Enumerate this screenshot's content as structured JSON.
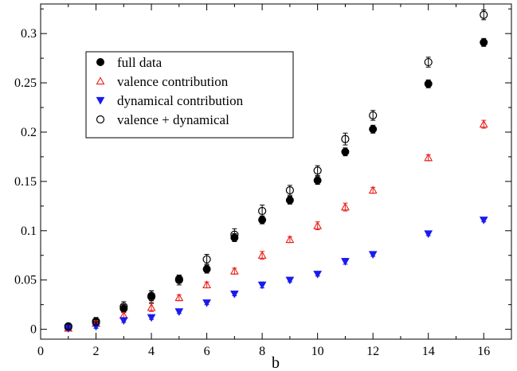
{
  "chart_data": {
    "type": "scatter",
    "title": "",
    "xlabel": "b",
    "ylabel": "",
    "xlim": [
      0,
      17
    ],
    "ylim": [
      -0.01,
      0.33
    ],
    "xticks": [
      0,
      2,
      4,
      6,
      8,
      10,
      12,
      14,
      16
    ],
    "yticks": [
      0,
      0.05,
      0.1,
      0.15,
      0.2,
      0.25,
      0.3
    ],
    "xtick_labels": [
      "0",
      "2",
      "4",
      "6",
      "8",
      "10",
      "12",
      "14",
      "16"
    ],
    "ytick_labels": [
      "0",
      "0.05",
      "0.1",
      "0.15",
      "0.2",
      "0.25",
      "0.3"
    ],
    "grid": false,
    "legend_position": "top-left",
    "series": [
      {
        "name": "full data",
        "marker": "filled-circle",
        "color": "#000000",
        "x": [
          1,
          2,
          3,
          4,
          5,
          6,
          7,
          8,
          9,
          10,
          11,
          12,
          14,
          16
        ],
        "y": [
          0.002,
          0.008,
          0.021,
          0.034,
          0.051,
          0.061,
          0.093,
          0.111,
          0.131,
          0.151,
          0.18,
          0.203,
          0.249,
          0.291
        ],
        "err": [
          0.003,
          0.003,
          0.004,
          0.005,
          0.004,
          0.004,
          0.004,
          0.004,
          0.004,
          0.004,
          0.004,
          0.004,
          0.004,
          0.004
        ]
      },
      {
        "name": "valence contribution",
        "marker": "open-triangle-up",
        "color": "#e8201a",
        "x": [
          1,
          2,
          3,
          4,
          5,
          6,
          7,
          8,
          9,
          10,
          11,
          12,
          14,
          16
        ],
        "y": [
          0.001,
          0.006,
          0.014,
          0.022,
          0.032,
          0.045,
          0.059,
          0.075,
          0.091,
          0.105,
          0.124,
          0.141,
          0.174,
          0.208
        ],
        "err": [
          0.002,
          0.003,
          0.003,
          0.004,
          0.003,
          0.003,
          0.003,
          0.004,
          0.003,
          0.004,
          0.004,
          0.003,
          0.003,
          0.004
        ]
      },
      {
        "name": "dynamical contribution",
        "marker": "filled-triangle-down",
        "color": "#1a1aee",
        "x": [
          1,
          2,
          3,
          4,
          5,
          6,
          7,
          8,
          9,
          10,
          11,
          12,
          14,
          16
        ],
        "y": [
          0.001,
          0.003,
          0.009,
          0.012,
          0.018,
          0.027,
          0.036,
          0.045,
          0.05,
          0.056,
          0.069,
          0.076,
          0.097,
          0.111
        ],
        "err": [
          0.002,
          0.002,
          0.002,
          0.002,
          0.002,
          0.002,
          0.002,
          0.003,
          0.002,
          0.002,
          0.003,
          0.002,
          0.002,
          0.002
        ]
      },
      {
        "name": "valence + dynamical",
        "marker": "open-circle",
        "color": "#000000",
        "x": [
          1,
          2,
          3,
          4,
          5,
          6,
          7,
          8,
          9,
          10,
          11,
          12,
          14,
          16
        ],
        "y": [
          0.003,
          0.008,
          0.023,
          0.033,
          0.05,
          0.071,
          0.096,
          0.12,
          0.141,
          0.161,
          0.193,
          0.217,
          0.271,
          0.319
        ],
        "err": [
          0.003,
          0.004,
          0.005,
          0.006,
          0.005,
          0.005,
          0.006,
          0.006,
          0.005,
          0.005,
          0.006,
          0.005,
          0.005,
          0.005
        ]
      }
    ]
  }
}
